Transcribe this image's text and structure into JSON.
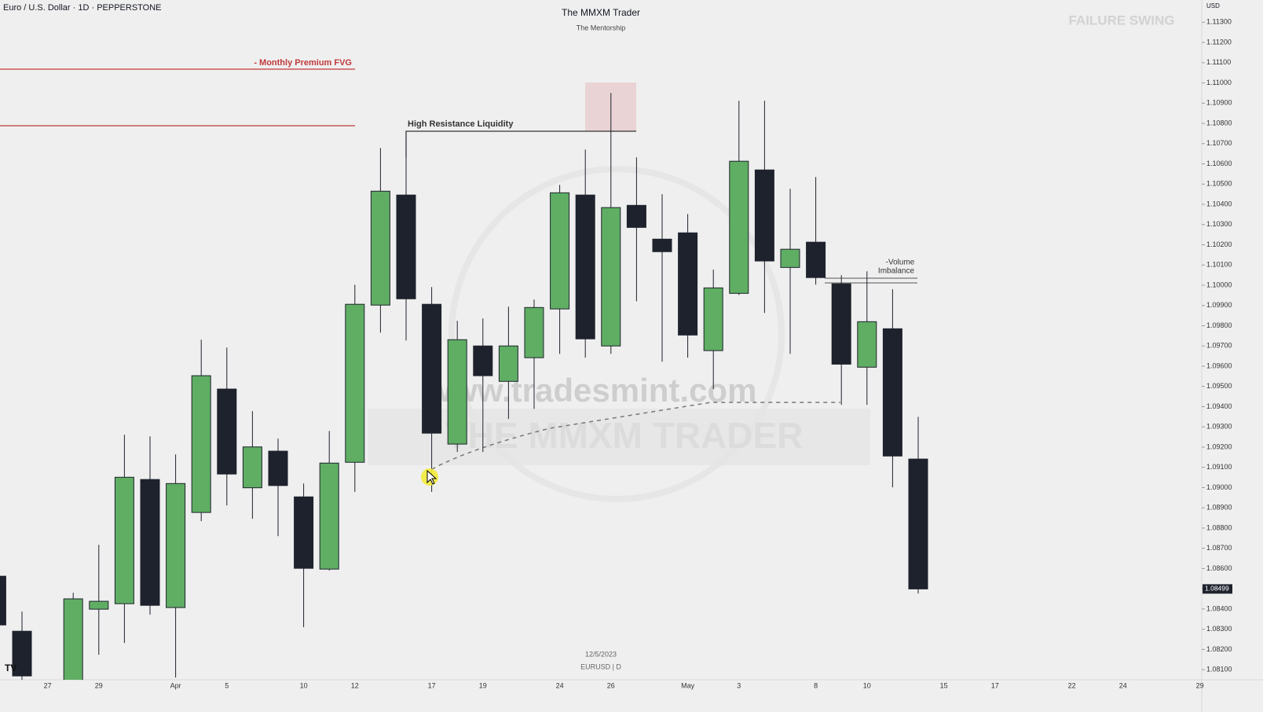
{
  "header": {
    "symbol": "Euro / U.S. Dollar · 1D · PEPPERSTONE",
    "title": "The MMXM Trader",
    "subtitle": "The Mentorship",
    "badge": "FAILURE SWING",
    "currency": "USD"
  },
  "footer": {
    "date": "12/5/2023",
    "ticker": "EURUSD | D"
  },
  "watermarks": [
    "www.tradesmint.com",
    "THE MMXM TRADER"
  ],
  "annotations": {
    "fvg": "- Monthly Premium FVG",
    "resistance": "High Resistance Liquidity",
    "volume_imbalance": [
      "-Volume",
      "Imbalance"
    ]
  },
  "chart_data": {
    "type": "candlestick",
    "up_color": "#5fae63",
    "down_color": "#1e222d",
    "categories": [
      null,
      null,
      "27",
      null,
      "29",
      null,
      null,
      "Apr",
      null,
      "5",
      null,
      null,
      "10",
      null,
      "12",
      null,
      null,
      "17",
      null,
      "19",
      null,
      null,
      "24",
      null,
      "26",
      null,
      null,
      "May",
      null,
      "3",
      null,
      null,
      "8",
      null,
      "10",
      null,
      null,
      "15",
      null,
      "17",
      null,
      null,
      "22",
      null,
      "24",
      null,
      null,
      "29"
    ],
    "open": [
      1.08562,
      1.0829,
      null,
      1.0804,
      1.08399,
      1.08426,
      1.0904,
      1.08407,
      1.08877,
      1.09487,
      1.08999,
      1.0918,
      1.08954,
      1.08597,
      1.09125,
      1.09902,
      1.10446,
      1.09906,
      1.09215,
      1.097,
      1.09525,
      1.09642,
      1.09883,
      1.10446,
      1.097,
      1.10395,
      1.10228,
      1.10259,
      1.09677,
      1.0996,
      1.1057,
      1.10088,
      1.10213,
      1.10007,
      1.09595,
      1.09785,
      1.09141,
      null,
      null,
      null,
      null,
      null,
      null,
      null,
      null,
      null,
      null,
      null
    ],
    "high": [
      1.0858,
      1.08387,
      null,
      1.0848,
      1.08717,
      1.09261,
      1.09253,
      1.09164,
      1.09731,
      1.09692,
      1.09378,
      1.09242,
      1.0902,
      1.0928,
      1.10003,
      1.10679,
      1.10756,
      1.09991,
      1.09824,
      1.09836,
      1.09894,
      1.09929,
      1.10496,
      1.10671,
      1.1095,
      1.10632,
      1.1045,
      1.10352,
      1.10077,
      1.10912,
      1.10912,
      1.10477,
      1.10535,
      1.1005,
      1.10069,
      1.0998,
      1.0935,
      null,
      null,
      null,
      null,
      null,
      null,
      null,
      null,
      null,
      null,
      null
    ],
    "low": [
      1.083,
      1.0805,
      null,
      1.0802,
      1.08174,
      1.08232,
      1.08372,
      1.08061,
      1.08834,
      1.08912,
      1.08846,
      1.0876,
      1.0831,
      1.0859,
      1.08979,
      1.09766,
      1.09727,
      1.08979,
      1.09176,
      1.09176,
      1.09339,
      1.09389,
      1.09661,
      1.09642,
      1.09661,
      1.09921,
      1.09622,
      1.09642,
      1.09487,
      1.09952,
      1.09863,
      1.09661,
      1.10003,
      1.09409,
      1.09409,
      1.09001,
      1.08477,
      null,
      null,
      null,
      null,
      null,
      null,
      null,
      null,
      null,
      null,
      null
    ],
    "close": [
      1.08321,
      1.08069,
      null,
      1.0845,
      1.08438,
      1.09051,
      1.08418,
      1.0902,
      1.09553,
      1.09067,
      1.09201,
      1.0901,
      1.08601,
      1.09121,
      1.09906,
      1.10465,
      1.09933,
      1.09269,
      1.09731,
      1.09553,
      1.097,
      1.0989,
      1.10457,
      1.09735,
      1.10384,
      1.10286,
      1.10166,
      1.09754,
      1.09987,
      1.10613,
      1.1012,
      1.10178,
      1.10038,
      1.0961,
      1.0982,
      1.09156,
      1.08499,
      null,
      null,
      null,
      null,
      null,
      null,
      null,
      null,
      null,
      null,
      null
    ],
    "last_price": 1.08499,
    "ylim": [
      1.0805,
      1.1141
    ],
    "yticks": [
      {
        "value": 1.081,
        "label": "1.08100"
      },
      {
        "value": 1.082,
        "label": "1.08200"
      },
      {
        "value": 1.083,
        "label": "1.08300"
      },
      {
        "value": 1.084,
        "label": "1.08400"
      },
      {
        "value": 1.085,
        "label": "1.08500"
      },
      {
        "value": 1.086,
        "label": "1.08600"
      },
      {
        "value": 1.087,
        "label": "1.08700"
      },
      {
        "value": 1.088,
        "label": "1.08800"
      },
      {
        "value": 1.089,
        "label": "1.08900"
      },
      {
        "value": 1.09,
        "label": "1.09000"
      },
      {
        "value": 1.091,
        "label": "1.09100"
      },
      {
        "value": 1.092,
        "label": "1.09200"
      },
      {
        "value": 1.093,
        "label": "1.09300"
      },
      {
        "value": 1.094,
        "label": "1.09400"
      },
      {
        "value": 1.095,
        "label": "1.09500"
      },
      {
        "value": 1.096,
        "label": "1.09600"
      },
      {
        "value": 1.097,
        "label": "1.09700"
      },
      {
        "value": 1.098,
        "label": "1.09800"
      },
      {
        "value": 1.099,
        "label": "1.09900"
      },
      {
        "value": 1.1,
        "label": "1.10000"
      },
      {
        "value": 1.101,
        "label": "1.10100"
      },
      {
        "value": 1.102,
        "label": "1.10200"
      },
      {
        "value": 1.103,
        "label": "1.10300"
      },
      {
        "value": 1.104,
        "label": "1.10400"
      },
      {
        "value": 1.105,
        "label": "1.10500"
      },
      {
        "value": 1.106,
        "label": "1.10600"
      },
      {
        "value": 1.107,
        "label": "1.10700"
      },
      {
        "value": 1.108,
        "label": "1.10800"
      },
      {
        "value": 1.109,
        "label": "1.10900"
      },
      {
        "value": 1.11,
        "label": "1.11000"
      },
      {
        "value": 1.111,
        "label": "1.11100"
      },
      {
        "value": 1.112,
        "label": "1.11200"
      },
      {
        "value": 1.113,
        "label": "1.11300"
      }
    ],
    "grid": false
  }
}
